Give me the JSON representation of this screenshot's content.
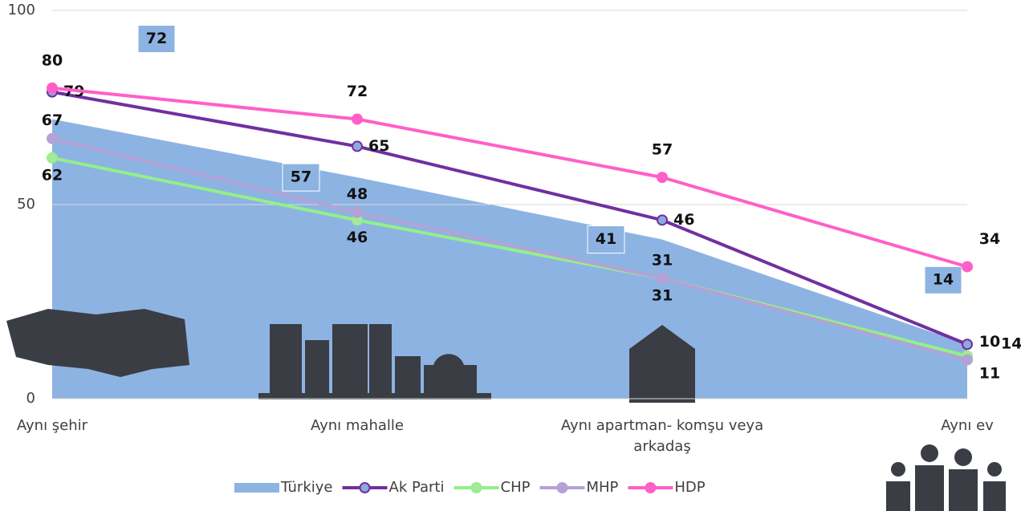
{
  "chart_data": {
    "type": "area-line",
    "categories": [
      "Aynı şehir",
      "Aynı mahalle",
      "Aynı apartman- komşu veya arkadaş",
      "Aynı ev"
    ],
    "ylim": [
      0,
      100
    ],
    "yticks": [
      0,
      50,
      100
    ],
    "grid": true,
    "legend": "bottom",
    "series": [
      {
        "name": "Türkiye",
        "type": "area",
        "color": "#8db3e2",
        "values": [
          72,
          57,
          41,
          14
        ]
      },
      {
        "name": "Ak Parti",
        "type": "line",
        "color": "#7030a0",
        "marker": "#8ea9db",
        "values": [
          79,
          65,
          46,
          14
        ]
      },
      {
        "name": "CHP",
        "type": "line",
        "color": "#92f08a",
        "marker": "#a9e89b",
        "values": [
          62,
          46,
          31,
          11
        ]
      },
      {
        "name": "MHP",
        "type": "line",
        "color": "#b4a2d6",
        "marker": "#b4a2d6",
        "values": [
          67,
          48,
          31,
          10
        ]
      },
      {
        "name": "HDP",
        "type": "line",
        "color": "#ff5fc8",
        "marker": "#ff5fc8",
        "values": [
          80,
          72,
          57,
          34
        ]
      }
    ]
  }
}
